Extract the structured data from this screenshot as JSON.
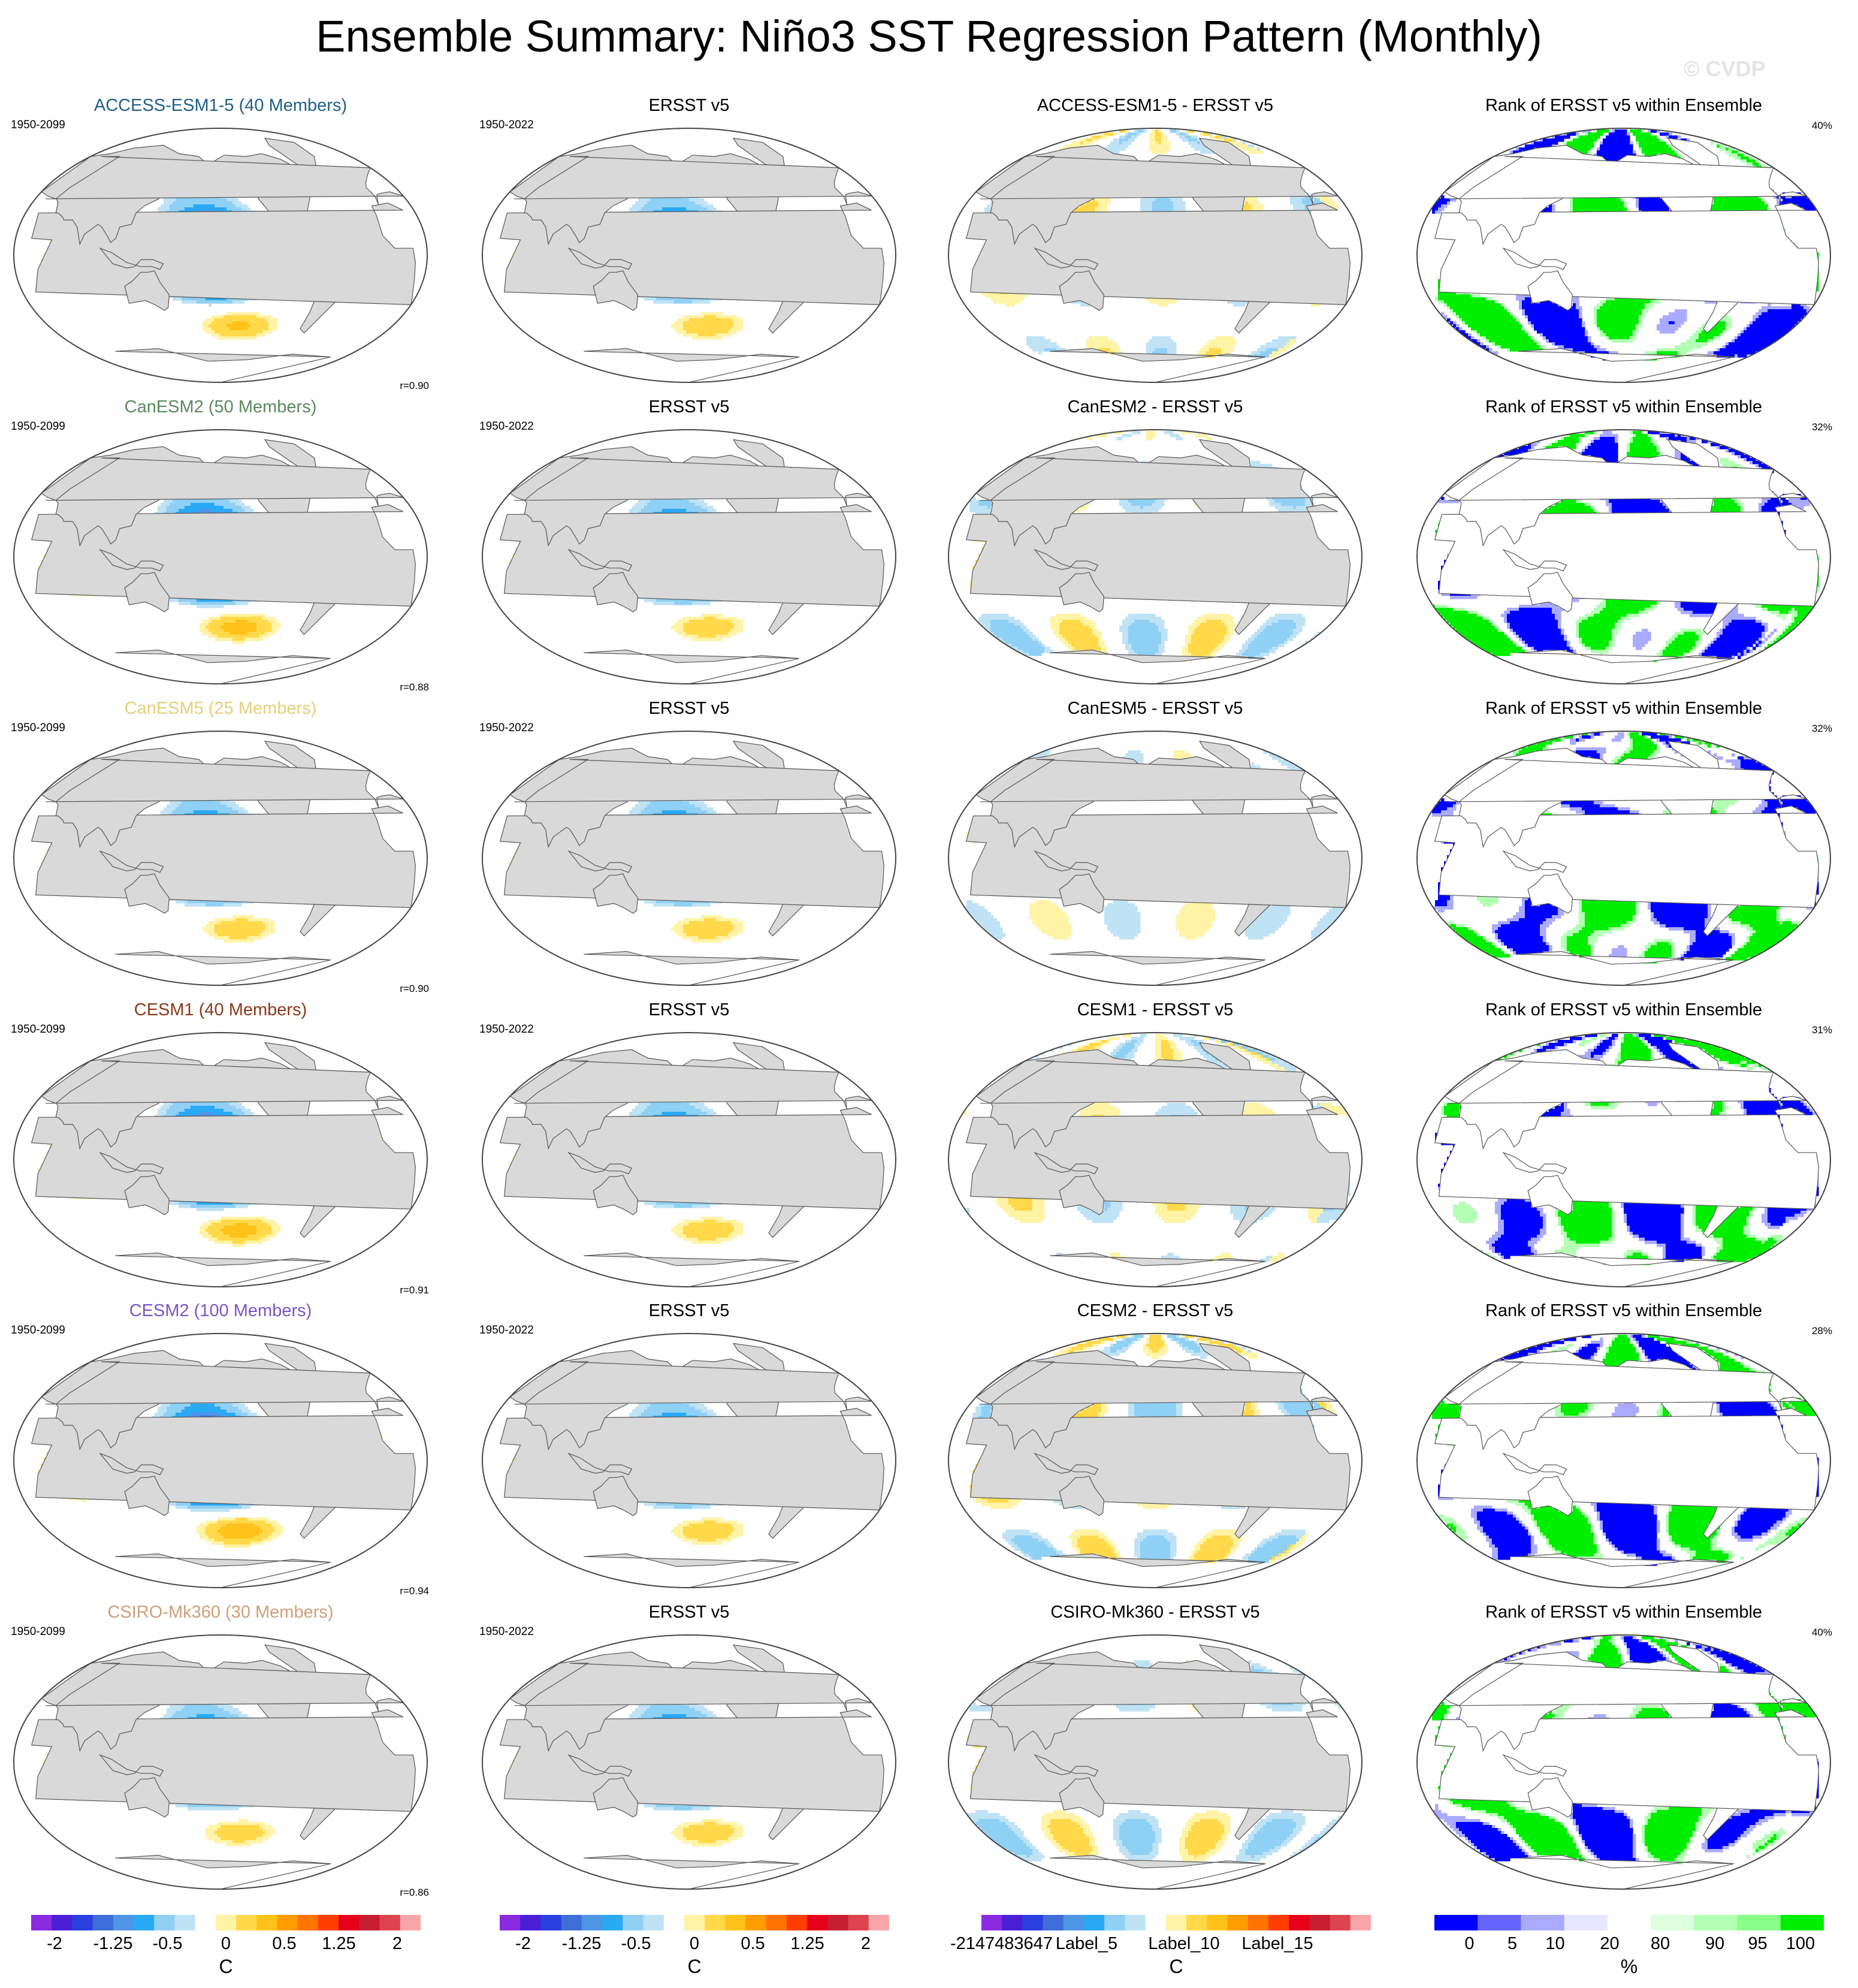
{
  "page": {
    "title": "Ensemble Summary: Niño3 SST Regression Pattern (Monthly)",
    "watermark": "© CVDP"
  },
  "colors": {
    "land": "#d9d9d9",
    "diverging_scale": [
      "#8a2be2",
      "#4a1fd6",
      "#2a3fe0",
      "#3e6ed8",
      "#4e95e6",
      "#2aa9f5",
      "#8fd0f5",
      "#bfe2f5",
      "#ffffff",
      "#fff3a6",
      "#ffd94a",
      "#ffc21a",
      "#ff9d00",
      "#ff7300",
      "#ff3d00",
      "#e6001a",
      "#c81e32",
      "#dd4450",
      "#f9a6aa"
    ],
    "rank_scale": [
      "#0000ff",
      "#6666ff",
      "#aaaaff",
      "#e6e6ff",
      "#ffffff",
      "#ddffdd",
      "#b3ffb3",
      "#88ff88",
      "#00ee00"
    ]
  },
  "chart_data": [
    {
      "type": "heatmap",
      "row": 1,
      "col": 1,
      "title": "ACCESS-ESM1-5 (40 Members)",
      "title_color": "#1f5f8b",
      "period": "1950-2099",
      "pattern_corr": "r=0.90",
      "amp": 1.15,
      "mode": "model"
    },
    {
      "type": "heatmap",
      "row": 1,
      "col": 2,
      "title": "ERSST v5",
      "period": "1950-2022",
      "amp": 1.0,
      "mode": "obs"
    },
    {
      "type": "heatmap",
      "row": 1,
      "col": 3,
      "title": "ACCESS-ESM1-5 - ERSST v5",
      "amp": 0.35,
      "mode": "diff"
    },
    {
      "type": "heatmap",
      "row": 1,
      "col": 4,
      "title": "Rank of ERSST v5 within Ensemble",
      "rank_pct": "40%",
      "mode": "rank",
      "seed": 1
    },
    {
      "type": "heatmap",
      "row": 2,
      "col": 1,
      "title": "CanESM2 (50 Members)",
      "title_color": "#5b8a5b",
      "period": "1950-2099",
      "pattern_corr": "r=0.88",
      "amp": 1.3,
      "mode": "model"
    },
    {
      "type": "heatmap",
      "row": 2,
      "col": 2,
      "title": "ERSST v5",
      "period": "1950-2022",
      "amp": 1.0,
      "mode": "obs"
    },
    {
      "type": "heatmap",
      "row": 2,
      "col": 3,
      "title": "CanESM2 - ERSST v5",
      "amp": 0.45,
      "mode": "diff"
    },
    {
      "type": "heatmap",
      "row": 2,
      "col": 4,
      "title": "Rank of ERSST v5 within Ensemble",
      "rank_pct": "32%",
      "mode": "rank",
      "seed": 2
    },
    {
      "type": "heatmap",
      "row": 3,
      "col": 1,
      "title": "CanESM5 (25 Members)",
      "title_color": "#e6cf7a",
      "period": "1950-2099",
      "pattern_corr": "r=0.90",
      "amp": 1.0,
      "mode": "model"
    },
    {
      "type": "heatmap",
      "row": 3,
      "col": 2,
      "title": "ERSST v5",
      "period": "1950-2022",
      "amp": 1.0,
      "mode": "obs"
    },
    {
      "type": "heatmap",
      "row": 3,
      "col": 3,
      "title": "CanESM5 - ERSST v5",
      "amp": 0.3,
      "mode": "diff"
    },
    {
      "type": "heatmap",
      "row": 3,
      "col": 4,
      "title": "Rank of ERSST v5 within Ensemble",
      "rank_pct": "32%",
      "mode": "rank",
      "seed": 3
    },
    {
      "type": "heatmap",
      "row": 4,
      "col": 1,
      "title": "CESM1 (40 Members)",
      "title_color": "#8b3a1a",
      "period": "1950-2099",
      "pattern_corr": "r=0.91",
      "amp": 1.3,
      "mode": "model"
    },
    {
      "type": "heatmap",
      "row": 4,
      "col": 2,
      "title": "ERSST v5",
      "period": "1950-2022",
      "amp": 1.0,
      "mode": "obs"
    },
    {
      "type": "heatmap",
      "row": 4,
      "col": 3,
      "title": "CESM1 - ERSST v5",
      "amp": 0.35,
      "mode": "diff"
    },
    {
      "type": "heatmap",
      "row": 4,
      "col": 4,
      "title": "Rank of ERSST v5 within Ensemble",
      "rank_pct": "31%",
      "mode": "rank",
      "seed": 4
    },
    {
      "type": "heatmap",
      "row": 5,
      "col": 1,
      "title": "CESM2 (100 Members)",
      "title_color": "#7a55c8",
      "period": "1950-2099",
      "pattern_corr": "r=0.94",
      "amp": 1.45,
      "mode": "model"
    },
    {
      "type": "heatmap",
      "row": 5,
      "col": 2,
      "title": "ERSST v5",
      "period": "1950-2022",
      "amp": 1.0,
      "mode": "obs"
    },
    {
      "type": "heatmap",
      "row": 5,
      "col": 3,
      "title": "CESM2 - ERSST v5",
      "amp": 0.5,
      "mode": "diff"
    },
    {
      "type": "heatmap",
      "row": 5,
      "col": 4,
      "title": "Rank of ERSST v5 within Ensemble",
      "rank_pct": "28%",
      "mode": "rank",
      "seed": 5
    },
    {
      "type": "heatmap",
      "row": 6,
      "col": 1,
      "title": "CSIRO-Mk360 (30 Members)",
      "title_color": "#cf9f78",
      "period": "1950-2099",
      "pattern_corr": "r=0.86",
      "amp": 0.95,
      "mode": "model"
    },
    {
      "type": "heatmap",
      "row": 6,
      "col": 2,
      "title": "ERSST v5",
      "period": "1950-2022",
      "amp": 1.0,
      "mode": "obs"
    },
    {
      "type": "heatmap",
      "row": 6,
      "col": 3,
      "title": "CSIRO-Mk360 - ERSST v5",
      "amp": 0.45,
      "mode": "diff"
    },
    {
      "type": "heatmap",
      "row": 6,
      "col": 4,
      "title": "Rank of ERSST v5 within Ensemble",
      "rank_pct": "40%",
      "mode": "rank",
      "seed": 6
    }
  ],
  "colorbars": [
    {
      "col": 1,
      "kind": "diverging",
      "labels": [
        "-2",
        "-1.25",
        "-0.5",
        "0",
        "0.5",
        "1.25",
        "2"
      ],
      "unit": "C"
    },
    {
      "col": 2,
      "kind": "diverging",
      "labels": [
        "-2",
        "-1.25",
        "-0.5",
        "0",
        "0.5",
        "1.25",
        "2"
      ],
      "unit": "C"
    },
    {
      "col": 3,
      "kind": "diverging",
      "labels": [
        "-2147483647",
        "Label_5",
        "Label_10",
        "Label_15"
      ],
      "unit": "C"
    },
    {
      "col": 4,
      "kind": "rank",
      "labels": [
        "0",
        "5",
        "10",
        "20",
        "80",
        "90",
        "95",
        "100"
      ],
      "unit": "%"
    }
  ]
}
